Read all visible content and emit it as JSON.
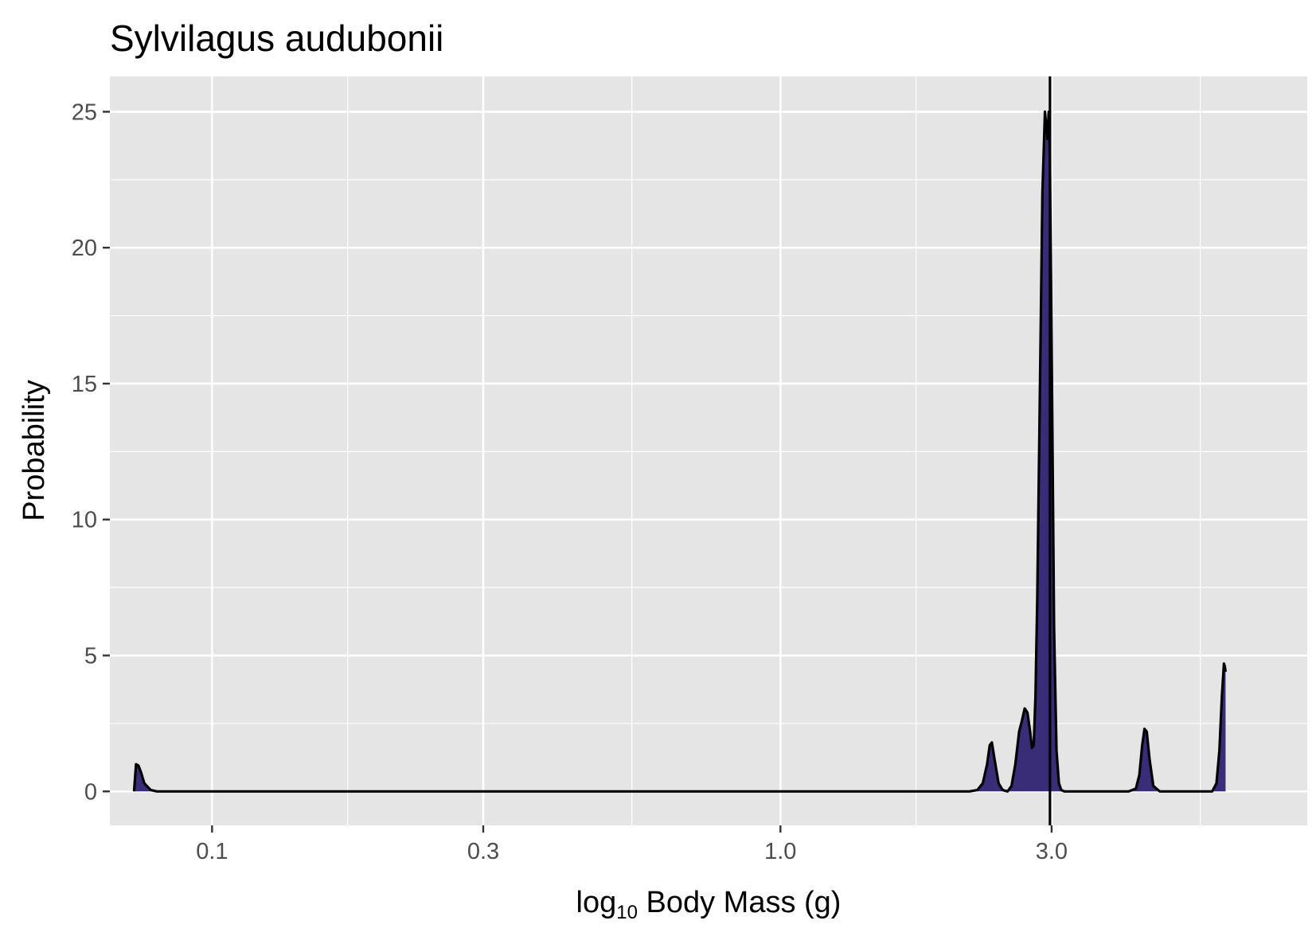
{
  "chart_data": {
    "type": "area",
    "title": "Sylvilagus audubonii",
    "xlabel": {
      "prefix": "log",
      "subscript": "10",
      "suffix": " Body Mass (g)"
    },
    "ylabel": "Probability",
    "x_scale": "log10",
    "xlim": [
      0.0661,
      8.45
    ],
    "ylim": [
      -1.25,
      26.3
    ],
    "x_ticks": [
      {
        "value": 0.1,
        "label": "0.1"
      },
      {
        "value": 0.3,
        "label": "0.3"
      },
      {
        "value": 1.0,
        "label": "1.0"
      },
      {
        "value": 3.0,
        "label": "3.0"
      }
    ],
    "x_minor_ticks": [
      0.0548,
      0.1732,
      0.5477,
      1.7321,
      5.4772
    ],
    "y_ticks": [
      {
        "value": 0,
        "label": "0"
      },
      {
        "value": 5,
        "label": "5"
      },
      {
        "value": 10,
        "label": "10"
      },
      {
        "value": 15,
        "label": "15"
      },
      {
        "value": 20,
        "label": "20"
      },
      {
        "value": 25,
        "label": "25"
      }
    ],
    "y_minor_ticks": [
      2.5,
      7.5,
      12.5,
      17.5,
      22.5
    ],
    "vline_x": 2.98,
    "grid": true,
    "colors": {
      "panel": "#e5e5e5",
      "grid": "#ffffff",
      "fill": "#3a2d78",
      "line": "#000000"
    },
    "density": {
      "x": [
        0.0729,
        0.0735,
        0.0742,
        0.075,
        0.076,
        0.078,
        0.08,
        0.12,
        0.2,
        0.4,
        0.8,
        1.5,
        2.15,
        2.22,
        2.27,
        2.31,
        2.335,
        2.355,
        2.38,
        2.42,
        2.46,
        2.51,
        2.55,
        2.59,
        2.63,
        2.66,
        2.69,
        2.72,
        2.75,
        2.77,
        2.79,
        2.81,
        2.83,
        2.85,
        2.87,
        2.89,
        2.92,
        2.95,
        2.965,
        2.98,
        2.995,
        3.01,
        3.03,
        3.06,
        3.09,
        3.12,
        3.16,
        3.21,
        3.3,
        4.1,
        4.22,
        4.28,
        4.33,
        4.37,
        4.41,
        4.46,
        4.53,
        4.65,
        5.5,
        5.75,
        5.85,
        5.92,
        5.98,
        6.03,
        6.05,
        6.07
      ],
      "y": [
        0.0,
        1.0,
        0.95,
        0.7,
        0.3,
        0.05,
        0.0,
        0.0,
        0.0,
        0.0,
        0.0,
        0.0,
        0.0,
        0.05,
        0.3,
        1.0,
        1.7,
        1.8,
        1.2,
        0.3,
        0.05,
        0.0,
        0.2,
        1.0,
        2.2,
        2.6,
        3.05,
        2.9,
        2.2,
        1.6,
        1.7,
        3.5,
        7.0,
        12.0,
        17.0,
        22.0,
        25.0,
        24.0,
        25.0,
        23.0,
        18.0,
        13.0,
        6.0,
        1.5,
        0.3,
        0.05,
        0.0,
        0.0,
        0.0,
        0.0,
        0.1,
        0.6,
        1.7,
        2.3,
        2.2,
        1.2,
        0.2,
        0.0,
        0.0,
        0.0,
        0.3,
        1.5,
        3.5,
        4.7,
        4.6,
        4.4
      ]
    }
  }
}
